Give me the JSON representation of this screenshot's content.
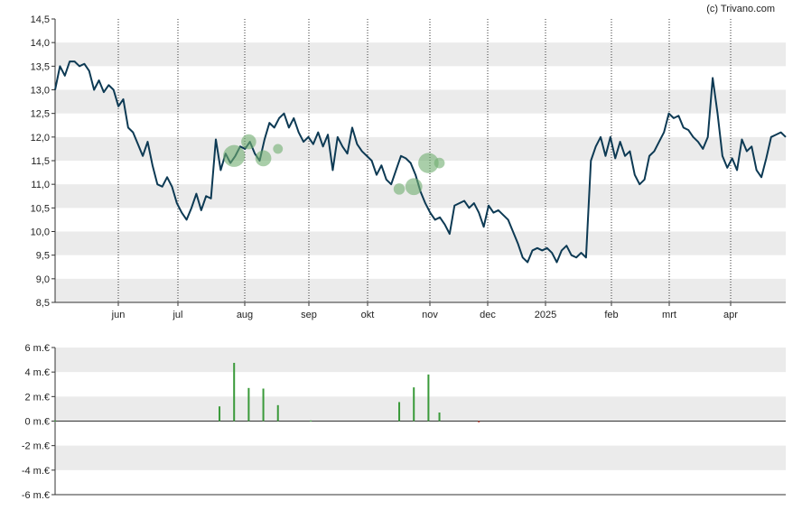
{
  "credit": "(c) Trivano.com",
  "chart_data": [
    {
      "type": "line",
      "title": "",
      "xlabel": "",
      "ylabel": "",
      "ylim": [
        8.5,
        14.5
      ],
      "yticks": [
        "14,5",
        "14,0",
        "13,5",
        "13,0",
        "12,5",
        "12,0",
        "11,5",
        "11,0",
        "10,5",
        "10,0",
        "9,5",
        "9,0",
        "8,5"
      ],
      "month_labels": [
        "jun",
        "jul",
        "aug",
        "sep",
        "okt",
        "nov",
        "dec",
        "2025",
        "feb",
        "mrt",
        "apr"
      ],
      "grid": "alternating horizontal bands, dotted vertical month lines",
      "colors": {
        "line": "#0d3a54",
        "bubble": "#6fae6f",
        "band": "#ebebeb"
      },
      "series": [
        {
          "values": [
            13.0,
            13.5,
            13.3,
            13.6,
            13.6,
            13.5,
            13.55,
            13.4,
            13.0,
            13.2,
            12.95,
            13.1,
            13.0,
            12.65,
            12.8,
            12.2,
            12.1,
            11.85,
            11.6,
            11.9,
            11.4,
            11.0,
            10.95,
            11.15,
            10.95,
            10.6,
            10.4,
            10.25,
            10.5,
            10.8,
            10.45,
            10.75,
            10.7,
            11.95,
            11.3,
            11.65,
            11.45,
            11.6,
            11.8,
            11.75,
            11.9,
            11.65,
            11.5,
            11.95,
            12.3,
            12.2,
            12.4,
            12.5,
            12.2,
            12.4,
            12.1,
            11.9,
            12.0,
            11.85,
            12.1,
            11.8,
            12.05,
            11.3,
            12.0,
            11.8,
            11.65,
            12.2,
            11.85,
            11.7,
            11.6,
            11.5,
            11.2,
            11.4,
            11.1,
            11.0,
            11.3,
            11.6,
            11.55,
            11.45,
            11.2,
            10.85,
            10.6,
            10.4,
            10.25,
            10.3,
            10.15,
            9.95,
            10.55,
            10.6,
            10.65,
            10.5,
            10.6,
            10.4,
            10.1,
            10.55,
            10.4,
            10.45,
            10.35,
            10.25,
            10.0,
            9.75,
            9.45,
            9.35,
            9.6,
            9.65,
            9.6,
            9.65,
            9.55,
            9.35,
            9.6,
            9.7,
            9.5,
            9.45,
            9.55,
            9.45,
            11.5,
            11.8,
            12.0,
            11.6,
            12.0,
            11.55,
            11.9,
            11.6,
            11.7,
            11.2,
            11.0,
            11.1,
            11.6,
            11.7,
            11.9,
            12.1,
            12.5,
            12.4,
            12.45,
            12.2,
            12.15,
            12.0,
            11.9,
            11.75,
            12.0,
            13.25,
            12.5,
            11.6,
            11.35,
            11.55,
            11.3,
            11.95,
            11.7,
            11.8,
            11.3,
            11.15,
            11.55,
            12.0,
            12.05,
            12.1,
            12.0
          ]
        }
      ],
      "bubbles": [
        {
          "t": 0.245,
          "y": 11.6,
          "size": 3.0
        },
        {
          "t": 0.265,
          "y": 11.9,
          "size": 1.4
        },
        {
          "t": 0.285,
          "y": 11.55,
          "size": 1.6
        },
        {
          "t": 0.305,
          "y": 11.75,
          "size": 0.6
        },
        {
          "t": 0.471,
          "y": 10.9,
          "size": 0.8
        },
        {
          "t": 0.491,
          "y": 10.95,
          "size": 1.8
        },
        {
          "t": 0.511,
          "y": 11.45,
          "size": 2.6
        },
        {
          "t": 0.526,
          "y": 11.45,
          "size": 0.7
        }
      ]
    },
    {
      "type": "bar",
      "title": "",
      "ylim": [
        -6,
        6
      ],
      "yticks": [
        "6 m.€",
        "4 m.€",
        "2 m.€",
        "0 m.€",
        "-2 m.€",
        "-4 m.€",
        "-6 m.€"
      ],
      "colors": {
        "bar": "#3a9a3a",
        "negative": "#c0392b",
        "band": "#ebebeb"
      },
      "bars": [
        {
          "t": 0.0,
          "v": 0.05
        },
        {
          "t": 0.225,
          "v": 1.2
        },
        {
          "t": 0.245,
          "v": 4.75
        },
        {
          "t": 0.265,
          "v": 2.7
        },
        {
          "t": 0.285,
          "v": 2.65
        },
        {
          "t": 0.305,
          "v": 1.3
        },
        {
          "t": 0.35,
          "v": 0.05
        },
        {
          "t": 0.471,
          "v": 1.55
        },
        {
          "t": 0.491,
          "v": 2.75
        },
        {
          "t": 0.511,
          "v": 3.8
        },
        {
          "t": 0.526,
          "v": 0.7
        },
        {
          "t": 0.58,
          "v": -0.1
        }
      ]
    }
  ]
}
